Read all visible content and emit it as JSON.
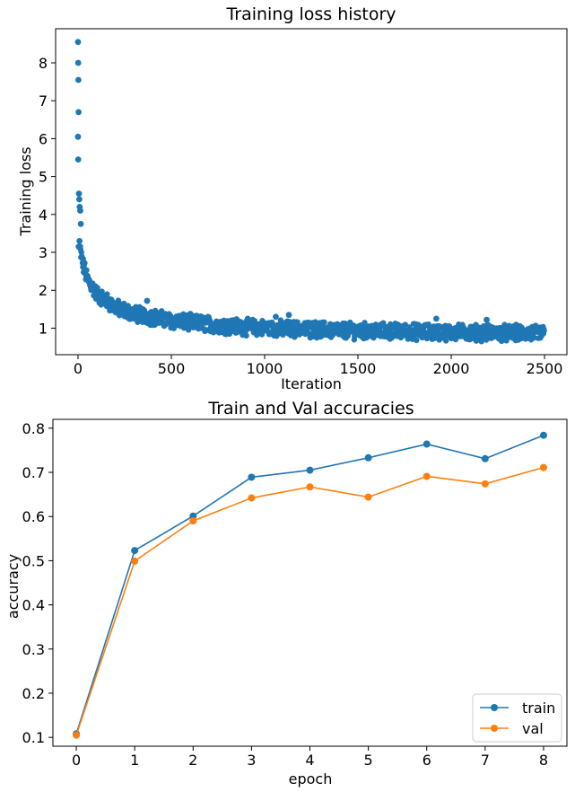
{
  "chart_data": [
    {
      "type": "scatter",
      "title": "Training loss history",
      "xlabel": "Iteration",
      "ylabel": "Training loss",
      "xlim": [
        -120,
        2620
      ],
      "ylim": [
        0.3,
        8.9
      ],
      "xticks": [
        0,
        500,
        1000,
        1500,
        2000,
        2500
      ],
      "yticks": [
        1,
        2,
        3,
        4,
        5,
        6,
        7,
        8
      ],
      "grid": false,
      "color": "#1f77b4",
      "n_points": 2500,
      "notable_points": [
        {
          "x": 0,
          "y": 8.55
        },
        {
          "x": 1,
          "y": 8.0
        },
        {
          "x": 2,
          "y": 7.55
        },
        {
          "x": 3,
          "y": 6.7
        },
        {
          "x": 0,
          "y": 6.05
        },
        {
          "x": 1,
          "y": 5.45
        },
        {
          "x": 5,
          "y": 4.55
        },
        {
          "x": 7,
          "y": 4.4
        },
        {
          "x": 9,
          "y": 4.2
        },
        {
          "x": 12,
          "y": 4.1
        },
        {
          "x": 15,
          "y": 3.75
        },
        {
          "x": 8,
          "y": 3.3
        },
        {
          "x": 4,
          "y": 3.15
        },
        {
          "x": 370,
          "y": 1.72
        },
        {
          "x": 1130,
          "y": 1.35
        },
        {
          "x": 1060,
          "y": 1.3
        },
        {
          "x": 1920,
          "y": 1.25
        },
        {
          "x": 2190,
          "y": 1.22
        }
      ],
      "trend": [
        {
          "x": 10,
          "y": 3.1
        },
        {
          "x": 25,
          "y": 2.7
        },
        {
          "x": 50,
          "y": 2.3
        },
        {
          "x": 100,
          "y": 1.9
        },
        {
          "x": 200,
          "y": 1.55
        },
        {
          "x": 300,
          "y": 1.38
        },
        {
          "x": 500,
          "y": 1.2
        },
        {
          "x": 750,
          "y": 1.08
        },
        {
          "x": 1000,
          "y": 1.0
        },
        {
          "x": 1500,
          "y": 0.93
        },
        {
          "x": 2000,
          "y": 0.89
        },
        {
          "x": 2500,
          "y": 0.86
        }
      ]
    },
    {
      "type": "line",
      "title": "Train and Val accuracies",
      "xlabel": "epoch",
      "ylabel": "accuracy",
      "xlim": [
        -0.4,
        8.4
      ],
      "ylim": [
        0.08,
        0.82
      ],
      "xticks": [
        0,
        1,
        2,
        3,
        4,
        5,
        6,
        7,
        8
      ],
      "yticks": [
        0.1,
        0.2,
        0.3,
        0.4,
        0.5,
        0.6,
        0.7,
        0.8
      ],
      "ytick_labels": [
        "0.1",
        "0.2",
        "0.3",
        "0.4",
        "0.5",
        "0.6",
        "0.7",
        "0.8"
      ],
      "grid": false,
      "legend_position": "lower-right",
      "x": [
        0,
        1,
        2,
        3,
        4,
        5,
        6,
        7,
        8
      ],
      "series": [
        {
          "name": "train",
          "color": "#1f77b4",
          "values": [
            0.108,
            0.523,
            0.601,
            0.689,
            0.705,
            0.733,
            0.764,
            0.731,
            0.784
          ]
        },
        {
          "name": "val",
          "color": "#ff7f0e",
          "values": [
            0.105,
            0.499,
            0.59,
            0.642,
            0.667,
            0.644,
            0.691,
            0.674,
            0.711
          ]
        }
      ]
    }
  ]
}
